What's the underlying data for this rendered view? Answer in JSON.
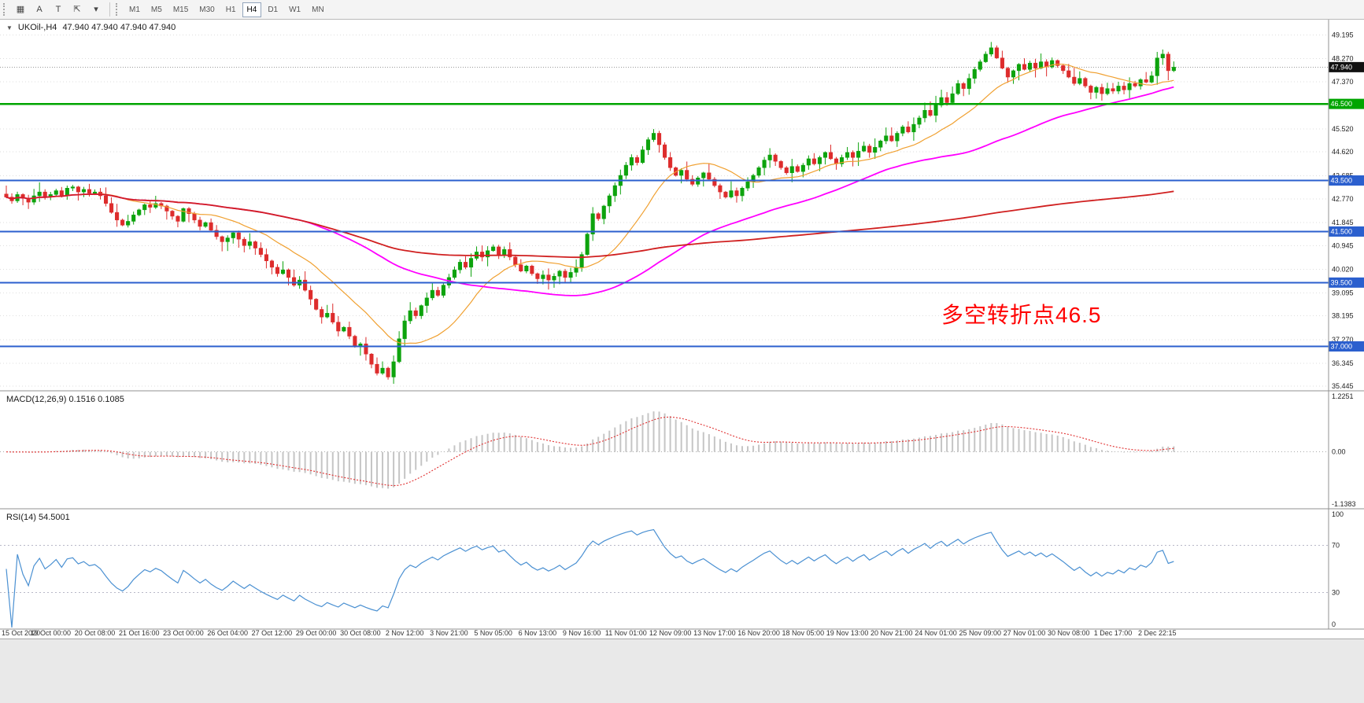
{
  "toolbar": {
    "icons": [
      {
        "name": "grid-pattern-icon",
        "glyph": "▦"
      },
      {
        "name": "font-a-icon",
        "glyph": "A"
      },
      {
        "name": "text-label-icon",
        "glyph": "T"
      },
      {
        "name": "cursor-tool-icon",
        "glyph": "⇱"
      },
      {
        "name": "dropdown-caret-icon",
        "glyph": "▾"
      }
    ],
    "timeframes": [
      "M1",
      "M5",
      "M15",
      "M30",
      "H1",
      "H4",
      "D1",
      "W1",
      "MN"
    ],
    "active_timeframe": "H4"
  },
  "chart_header": {
    "symbol_label": "UKOil-,H4",
    "ohlc": "47.940 47.940 47.940 47.940"
  },
  "annotation": {
    "text": "多空转折点46.5",
    "color": "#FF0000"
  },
  "price_axis": {
    "max": 49.8,
    "min": 35.26,
    "labels": [
      "49.195",
      "48.270",
      "47.370",
      "45.520",
      "44.620",
      "43.685",
      "42.770",
      "41.845",
      "40.945",
      "40.020",
      "39.095",
      "38.195",
      "37.270",
      "36.345",
      "35.445"
    ],
    "current": {
      "value": 47.94,
      "label": "47.940",
      "badge_color": "#111111"
    }
  },
  "hlines": [
    {
      "price": 46.5,
      "color": "#00A500",
      "badge": "46.500",
      "width": 2.5
    },
    {
      "price": 43.5,
      "color": "#2B5FCE",
      "badge": "43.500",
      "width": 2
    },
    {
      "price": 41.5,
      "color": "#2B5FCE",
      "badge": "41.500",
      "width": 2
    },
    {
      "price": 39.5,
      "color": "#2B5FCE",
      "badge": "39.500",
      "width": 2
    },
    {
      "price": 37.0,
      "color": "#2B5FCE",
      "badge": "37.000",
      "width": 2
    }
  ],
  "macd_panel": {
    "label": "MACD(12,26,9) 0.1516 0.1085",
    "max": 1.2251,
    "min": -1.1383,
    "axis_labels": [
      "1.2251",
      "0.00",
      "-1.1383"
    ],
    "hist_color": "#C5C5C5",
    "signal_color": "#E03030"
  },
  "rsi_panel": {
    "label": "RSI(14) 54.5001",
    "axis_labels": [
      "100",
      "70",
      "30",
      "0"
    ],
    "levels": [
      70,
      30
    ],
    "line_color": "#4A90D2",
    "level_color": "#B8B8C8"
  },
  "time_axis": {
    "labels": [
      "15 Oct 2020",
      "19 Oct 00:00",
      "20 Oct 08:00",
      "21 Oct 16:00",
      "23 Oct 00:00",
      "26 Oct 04:00",
      "27 Oct 12:00",
      "29 Oct 00:00",
      "30 Oct 08:00",
      "2 Nov 12:00",
      "3 Nov 21:00",
      "5 Nov 05:00",
      "6 Nov 13:00",
      "9 Nov 16:00",
      "11 Nov 01:00",
      "12 Nov 09:00",
      "13 Nov 17:00",
      "16 Nov 20:00",
      "18 Nov 05:00",
      "19 Nov 13:00",
      "20 Nov 21:00",
      "24 Nov 01:00",
      "25 Nov 09:00",
      "27 Nov 01:00",
      "30 Nov 08:00",
      "1 Dec 17:00",
      "2 Dec 22:15"
    ]
  },
  "chart_data": {
    "type": "candlestick",
    "symbol": "UKOil-",
    "timeframe": "H4",
    "bull_color": "#0DA30D",
    "bear_color": "#DD2C2C",
    "grid_color": "#DEDEDE",
    "candles_per_label": 8,
    "closes": [
      42.85,
      42.7,
      42.95,
      42.8,
      42.65,
      42.9,
      43.05,
      42.85,
      42.95,
      43.1,
      42.9,
      43.2,
      43.25,
      43.05,
      43.15,
      43.0,
      43.05,
      42.9,
      42.6,
      42.25,
      41.95,
      41.75,
      41.9,
      42.15,
      42.35,
      42.55,
      42.45,
      42.6,
      42.5,
      42.3,
      42.1,
      41.9,
      42.4,
      42.2,
      41.95,
      41.7,
      41.85,
      41.55,
      41.3,
      41.1,
      41.25,
      41.45,
      41.2,
      40.95,
      41.1,
      40.85,
      40.6,
      40.35,
      40.1,
      39.85,
      40.0,
      39.7,
      39.4,
      39.6,
      39.2,
      38.85,
      38.45,
      38.15,
      38.3,
      37.95,
      37.6,
      37.75,
      37.4,
      37.0,
      37.1,
      36.7,
      36.3,
      35.95,
      36.15,
      35.8,
      36.4,
      37.3,
      38.0,
      38.4,
      38.2,
      38.6,
      38.9,
      39.2,
      39.0,
      39.4,
      39.7,
      40.0,
      40.3,
      40.1,
      40.45,
      40.7,
      40.5,
      40.75,
      40.9,
      40.6,
      40.8,
      40.5,
      40.2,
      39.95,
      40.15,
      39.85,
      39.65,
      39.8,
      39.6,
      39.75,
      39.95,
      39.7,
      39.9,
      40.1,
      40.6,
      41.4,
      42.2,
      42.0,
      42.5,
      42.9,
      43.3,
      43.7,
      44.1,
      44.4,
      44.2,
      44.7,
      45.1,
      45.35,
      44.9,
      44.4,
      44.0,
      43.7,
      43.9,
      43.55,
      43.35,
      43.6,
      43.8,
      43.55,
      43.3,
      43.05,
      42.85,
      43.1,
      42.9,
      43.2,
      43.45,
      43.7,
      44.0,
      44.3,
      44.5,
      44.25,
      44.0,
      43.8,
      44.05,
      43.85,
      44.1,
      44.35,
      44.15,
      44.4,
      44.6,
      44.35,
      44.15,
      44.4,
      44.6,
      44.4,
      44.65,
      44.85,
      44.6,
      44.8,
      45.05,
      45.25,
      45.05,
      45.35,
      45.6,
      45.4,
      45.7,
      45.95,
      46.25,
      46.05,
      46.45,
      46.75,
      46.55,
      46.9,
      47.3,
      47.1,
      47.5,
      47.85,
      48.15,
      48.45,
      48.7,
      48.3,
      47.9,
      47.55,
      47.8,
      48.05,
      47.85,
      48.1,
      47.9,
      48.15,
      47.95,
      48.2,
      48.0,
      47.8,
      47.55,
      47.3,
      47.5,
      47.2,
      46.95,
      47.15,
      46.9,
      47.1,
      47.0,
      47.2,
      47.05,
      47.3,
      47.2,
      47.45,
      47.35,
      47.6,
      48.3,
      48.45,
      47.8,
      47.94
    ],
    "moving_averages": [
      {
        "period": 16,
        "color": "#F0A030",
        "width": 1.2
      },
      {
        "period": 55,
        "color": "#FF00FF",
        "width": 1.8
      },
      {
        "period": 190,
        "color": "#D02020",
        "width": 1.8
      }
    ],
    "indicators": [
      {
        "name": "MACD",
        "params": [
          12,
          26,
          9
        ],
        "values": [
          0.1516,
          0.1085
        ]
      },
      {
        "name": "RSI",
        "params": [
          14
        ],
        "value": 54.5001
      }
    ]
  }
}
